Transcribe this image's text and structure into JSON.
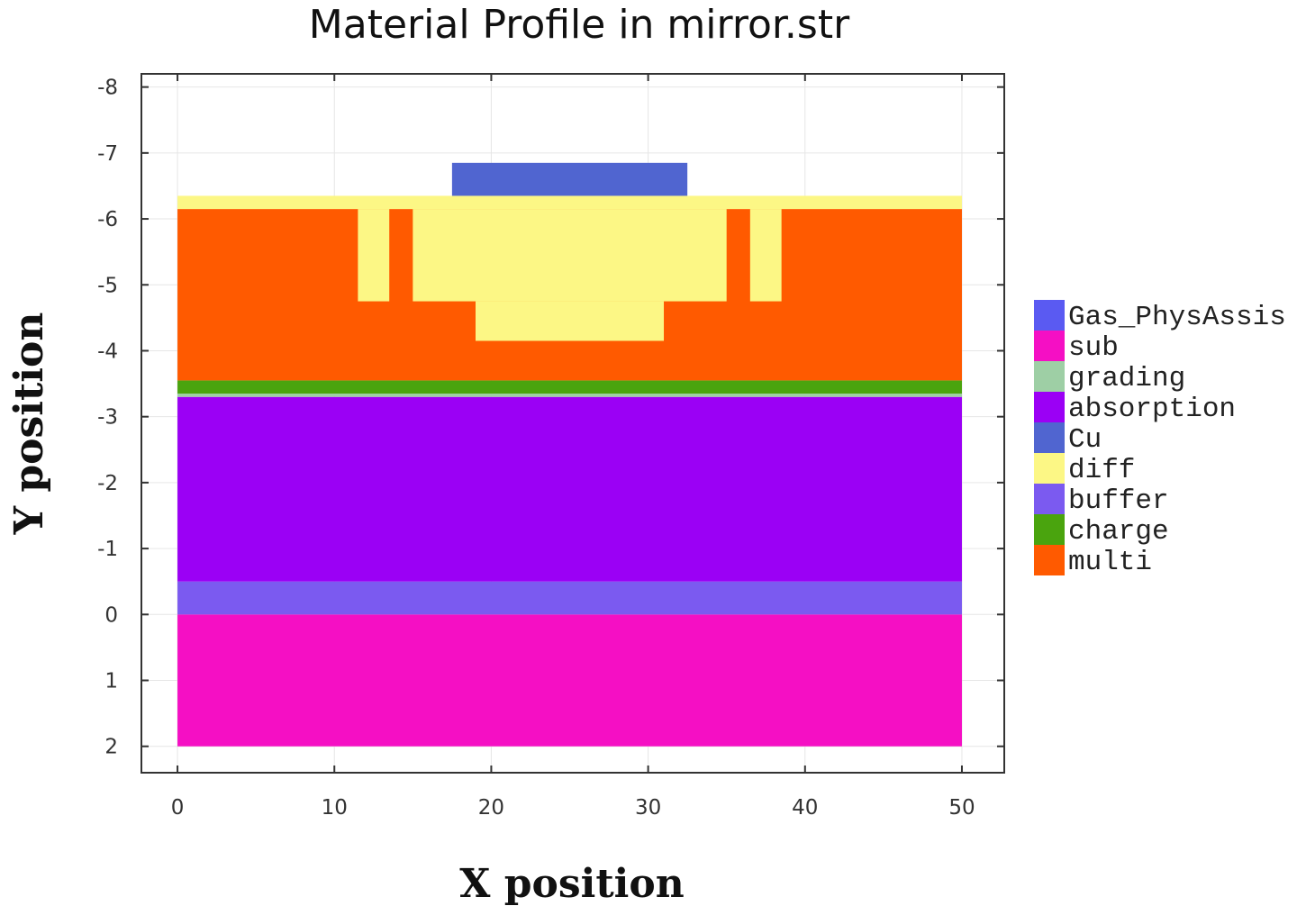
{
  "chart_data": {
    "type": "material-profile",
    "title": "Material Profile in mirror.str",
    "xlabel": "X position",
    "ylabel": "Y position",
    "xlim": [
      -2.3,
      52.7
    ],
    "ylim": [
      -8.2,
      2.4
    ],
    "y_inverted": true,
    "x_ticks": [
      0,
      10,
      20,
      30,
      40,
      50
    ],
    "y_ticks": [
      -8,
      -7,
      -6,
      -5,
      -4,
      -3,
      -2,
      -1,
      0,
      1,
      2
    ],
    "grid": true,
    "legend_position": "right",
    "materials": [
      {
        "name": "Gas_PhysAssis",
        "color": "#5a5af2"
      },
      {
        "name": "sub",
        "color": "#f50fc4"
      },
      {
        "name": "grading",
        "color": "#9ecfa5"
      },
      {
        "name": "absorption",
        "color": "#9b00f5"
      },
      {
        "name": "Cu",
        "color": "#5065d0"
      },
      {
        "name": "diff",
        "color": "#fcf785"
      },
      {
        "name": "buffer",
        "color": "#7b5af0"
      },
      {
        "name": "charge",
        "color": "#4aa40e"
      },
      {
        "name": "multi",
        "color": "#ff5a00"
      }
    ],
    "regions": [
      {
        "material": "sub",
        "x": [
          0,
          50
        ],
        "y": [
          0,
          2
        ]
      },
      {
        "material": "buffer",
        "x": [
          0,
          50
        ],
        "y": [
          -0.5,
          0
        ]
      },
      {
        "material": "absorption",
        "x": [
          0,
          50
        ],
        "y": [
          -3.3,
          -0.5
        ]
      },
      {
        "material": "grading",
        "x": [
          0,
          50
        ],
        "y": [
          -3.35,
          -3.3
        ]
      },
      {
        "material": "charge",
        "x": [
          0,
          50
        ],
        "y": [
          -3.55,
          -3.35
        ]
      },
      {
        "material": "multi",
        "x": [
          0,
          50
        ],
        "y": [
          -6.15,
          -3.55
        ]
      },
      {
        "material": "diff",
        "x": [
          0,
          50
        ],
        "y": [
          -6.35,
          -6.15
        ]
      },
      {
        "material": "diff",
        "x": [
          11.5,
          13.5
        ],
        "y": [
          -6.15,
          -4.75
        ]
      },
      {
        "material": "diff",
        "x": [
          15,
          35
        ],
        "y": [
          -6.15,
          -4.75
        ]
      },
      {
        "material": "diff",
        "x": [
          19,
          31
        ],
        "y": [
          -4.75,
          -4.15
        ]
      },
      {
        "material": "diff",
        "x": [
          36.5,
          38.5
        ],
        "y": [
          -6.15,
          -4.75
        ]
      },
      {
        "material": "Cu",
        "x": [
          17.5,
          32.5
        ],
        "y": [
          -6.85,
          -6.35
        ]
      }
    ]
  }
}
